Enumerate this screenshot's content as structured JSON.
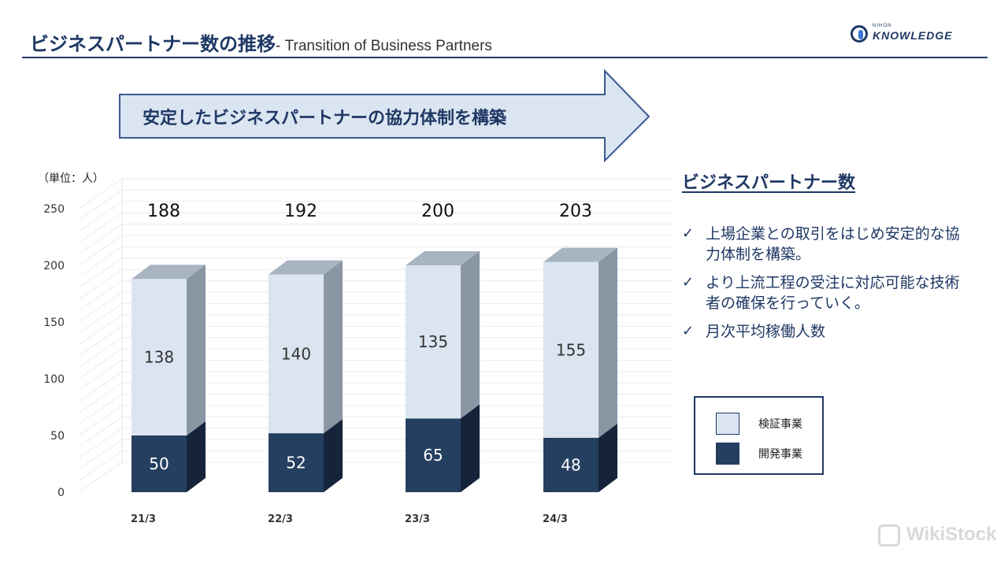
{
  "header": {
    "title_jp": "ビジネスパートナー数の推移",
    "title_en": "- Transition of Business Partners",
    "logo_small": "NIHON",
    "logo_big": "KNOWLEDGE"
  },
  "banner": {
    "text": "安定したビジネスパートナーの協力体制を構築"
  },
  "unit_label": "（単位：人）",
  "side": {
    "title": "ビジネスパートナー数",
    "check_symbol": "✓",
    "bullets": [
      "上場企業との取引をはじめ安定的な協力体制を構築。",
      "より上流工程の受注に対応可能な技術者の確保を行っていく。",
      "月次平均稼働人数"
    ]
  },
  "legend": {
    "items": [
      {
        "label": "検証事業",
        "color": "#dbe5f1"
      },
      {
        "label": "開発事業",
        "color": "#243f60"
      }
    ]
  },
  "watermark": "WikiStock",
  "colors": {
    "accent": "#1f3864",
    "light": "#dbe5f1",
    "dark": "#243f60"
  },
  "chart_data": {
    "type": "bar",
    "stacked": true,
    "categories": [
      "21/3",
      "22/3",
      "23/3",
      "24/3"
    ],
    "series": [
      {
        "name": "開発事業",
        "values": [
          50,
          52,
          65,
          48
        ]
      },
      {
        "name": "検証事業",
        "values": [
          138,
          140,
          135,
          155
        ]
      }
    ],
    "totals": [
      188,
      192,
      200,
      203
    ],
    "ylim": [
      0,
      250
    ],
    "yticks": [
      0,
      50,
      100,
      150,
      200,
      250
    ],
    "grid": true
  }
}
